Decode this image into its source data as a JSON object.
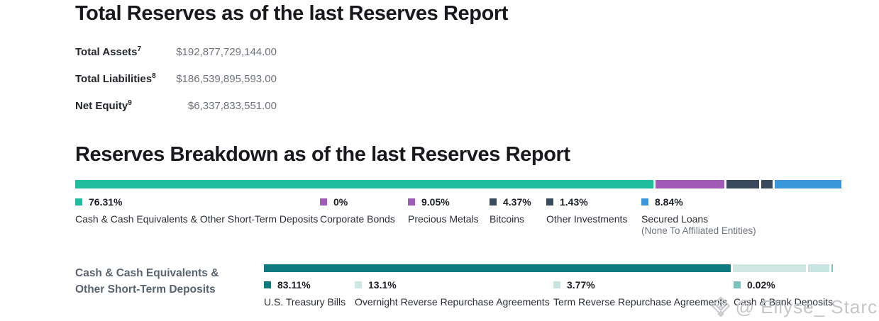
{
  "total_reserves": {
    "title": "Total Reserves as of the last Reserves Report",
    "rows": [
      {
        "label": "Total Assets",
        "footnote": "7",
        "value": "$192,877,729,144.00"
      },
      {
        "label": "Total Liabilities",
        "footnote": "8",
        "value": "$186,539,895,593.00"
      },
      {
        "label": "Net Equity",
        "footnote": "9",
        "value": "$6,337,833,551.00"
      }
    ]
  },
  "reserves_breakdown": {
    "title": "Reserves Breakdown as of the last Reserves Report"
  },
  "cash_section": {
    "label_lines": [
      "Cash & Cash Equivalents &",
      "Other Short-Term Deposits"
    ]
  },
  "chart_data": [
    {
      "type": "stacked_bar",
      "title": "Reserves Breakdown as of the last Reserves Report",
      "unit": "%",
      "total": 100,
      "segments": [
        {
          "label": "Cash & Cash Equivalents & Other Short-Term Deposits",
          "pct": 76.31,
          "pct_label": "76.31%",
          "color": "#1fbc9d"
        },
        {
          "label": "Corporate Bonds",
          "pct": 0,
          "pct_label": "0%",
          "color": "#9f5bb5"
        },
        {
          "label": "Precious Metals",
          "pct": 9.05,
          "pct_label": "9.05%",
          "color": "#9f5bb5"
        },
        {
          "label": "Bitcoins",
          "pct": 4.37,
          "pct_label": "4.37%",
          "color": "#3a4a5e"
        },
        {
          "label": "Other Investments",
          "pct": 1.43,
          "pct_label": "1.43%",
          "color": "#3a4a5e"
        },
        {
          "label": "Secured Loans",
          "sub_label": "(None To Affiliated Entities)",
          "pct": 8.84,
          "pct_label": "8.84%",
          "color": "#3a97d9"
        }
      ]
    },
    {
      "type": "stacked_bar",
      "title": "Cash & Cash Equivalents & Other Short-Term Deposits",
      "unit": "%",
      "total": 100,
      "segments": [
        {
          "label": "U.S. Treasury Bills",
          "pct": 83.11,
          "pct_label": "83.11%",
          "color": "#0d7a80"
        },
        {
          "label": "Overnight Reverse Repurchase Agreements",
          "pct": 13.1,
          "pct_label": "13.1%",
          "color": "#cfe8e4"
        },
        {
          "label": "Term Reverse Repurchase Agreements",
          "pct": 3.77,
          "pct_label": "3.77%",
          "color": "#c9e5e1"
        },
        {
          "label": "Cash & Bank Deposits",
          "pct": 0.02,
          "pct_label": "0.02%",
          "color": "#79c2c0"
        }
      ]
    }
  ],
  "watermark": {
    "text": "@ Ellyse_ Starc",
    "icon": "gem-diamond-icon"
  }
}
